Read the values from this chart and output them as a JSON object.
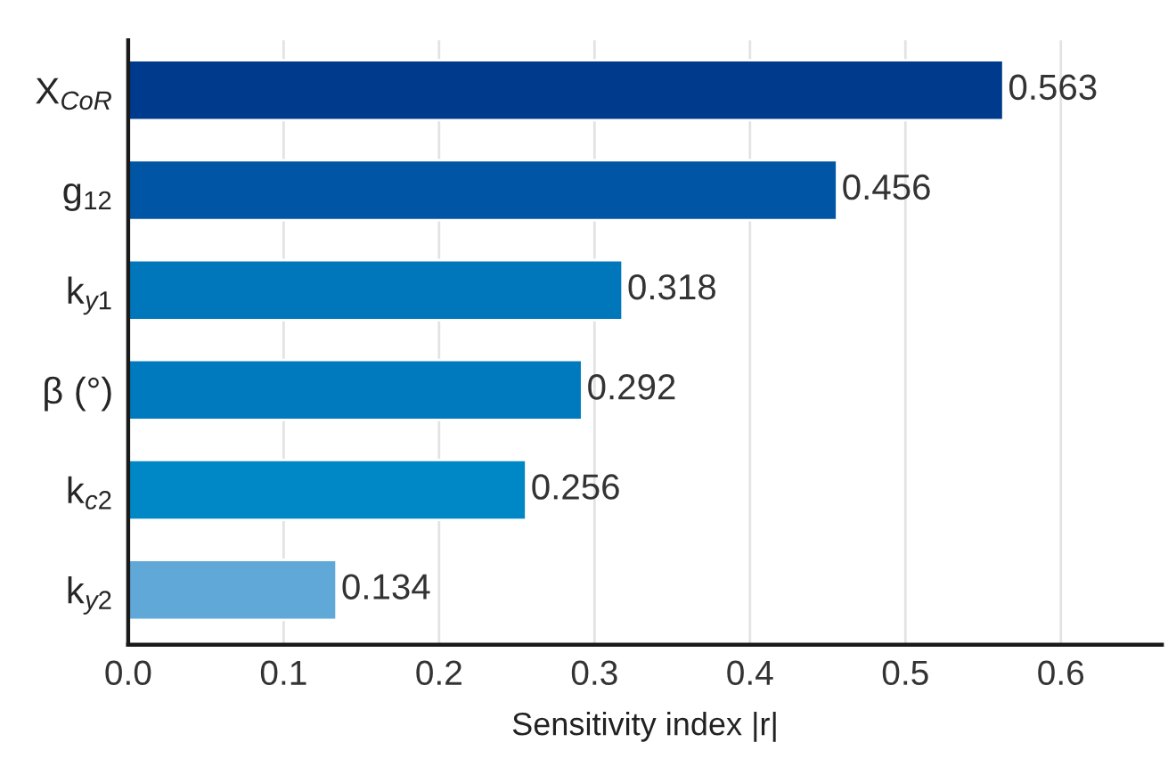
{
  "chart_data": {
    "type": "bar",
    "orientation": "horizontal",
    "categories": [
      "X$_{CoR}$",
      "g$_{12}$",
      "k$_{y1}$",
      "β (°)",
      "k$_{c2}$",
      "k$_{y2}$"
    ],
    "values": [
      0.563,
      0.456,
      0.318,
      0.292,
      0.256,
      0.134
    ],
    "colors": [
      "#003a8c",
      "#0055a5",
      "#0077bb",
      "#007abe",
      "#0087c6",
      "#60a8d8"
    ],
    "xlabel": "Sensitivity index |r|",
    "xlim": [
      0,
      0.665
    ],
    "xticks": [
      {
        "value": 0,
        "label": "0.0"
      },
      0.1,
      0.2,
      0.3,
      0.4,
      0.5,
      0.6
    ],
    "grid": "x",
    "data_labels": true
  }
}
